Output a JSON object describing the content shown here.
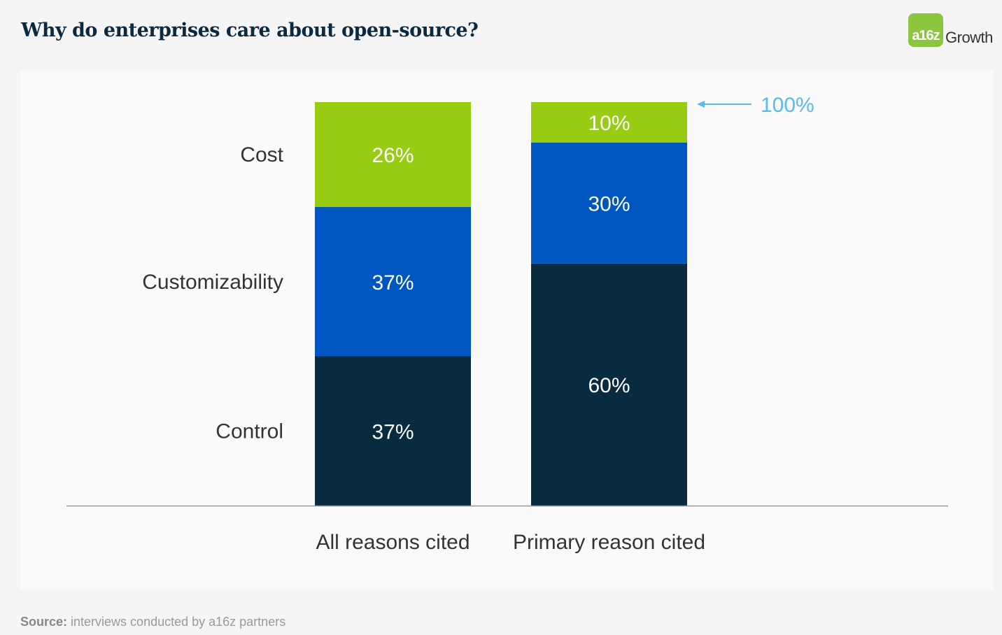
{
  "header": {
    "title": "Why do enterprises care about open-source?",
    "logo_mark": "a16z",
    "logo_word": "Growth"
  },
  "footer": {
    "source_label": "Source:",
    "source_text": " interviews conducted by a16z partners"
  },
  "colors": {
    "control": "#082b40",
    "customizability": "#0057c2",
    "cost": "#97cc13",
    "annotation": "#5bbbe8"
  },
  "chart_data": {
    "type": "bar",
    "stacked": true,
    "categories": [
      "All reasons cited",
      "Primary reason cited"
    ],
    "series": [
      {
        "name": "Control",
        "values": [
          37,
          60
        ],
        "labels": [
          "37%",
          "60%"
        ]
      },
      {
        "name": "Customizability",
        "values": [
          37,
          30
        ],
        "labels": [
          "37%",
          "30%"
        ]
      },
      {
        "name": "Cost",
        "values": [
          26,
          10
        ],
        "labels": [
          "26%",
          "10%"
        ]
      }
    ],
    "ylim": [
      0,
      100
    ],
    "annotation": "100%",
    "legend": "left"
  }
}
